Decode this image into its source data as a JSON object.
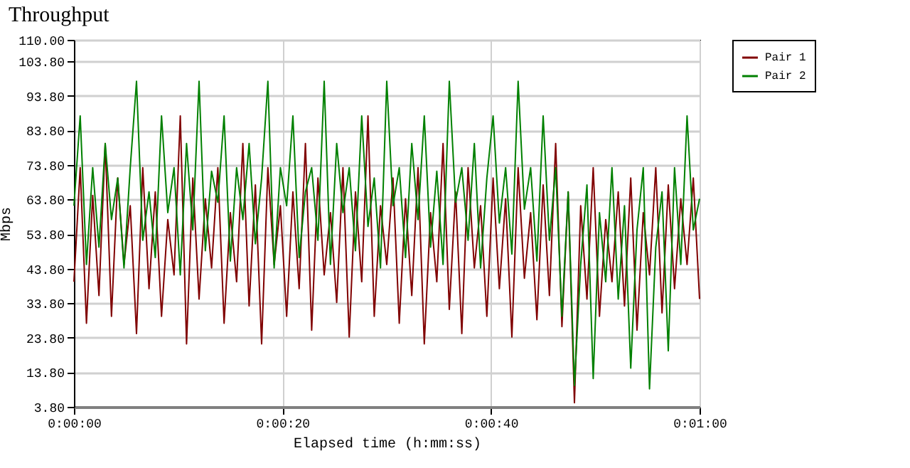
{
  "chart_data": {
    "type": "line",
    "title": "Throughput",
    "xlabel": "Elapsed time (h:mm:ss)",
    "ylabel": "Mbps",
    "x": [
      0,
      0.6,
      1.2,
      1.8,
      2.4,
      3,
      3.6,
      4.2,
      4.8,
      5.4,
      6,
      6.6,
      7.2,
      7.8,
      8.4,
      9,
      9.6,
      10.2,
      10.8,
      11.4,
      12,
      12.6,
      13.2,
      13.8,
      14.4,
      15,
      15.6,
      16.2,
      16.8,
      17.4,
      18,
      18.6,
      19.2,
      19.8,
      20.4,
      21,
      21.6,
      22.2,
      22.8,
      23.4,
      24,
      24.6,
      25.2,
      25.8,
      26.4,
      27,
      27.6,
      28.2,
      28.8,
      29.4,
      30,
      30.6,
      31.2,
      31.8,
      32.4,
      33,
      33.6,
      34.2,
      34.8,
      35.4,
      36,
      36.6,
      37.2,
      37.8,
      38.4,
      39,
      39.6,
      40.2,
      40.8,
      41.4,
      42,
      42.6,
      43.2,
      43.8,
      44.4,
      45,
      45.6,
      46.2,
      46.8,
      47.4,
      48,
      48.6,
      49.2,
      49.8,
      50.4,
      51,
      51.6,
      52.2,
      52.8,
      53.4,
      54,
      54.6,
      55.2,
      55.8,
      56.4,
      57,
      57.6,
      58.2,
      58.8,
      59.4,
      60
    ],
    "series": [
      {
        "name": "Pair 1",
        "color": "#800000",
        "values": [
          40,
          73,
          28,
          65,
          36,
          80,
          30,
          70,
          45,
          62,
          25,
          73,
          38,
          66,
          30,
          58,
          42,
          88,
          22,
          70,
          35,
          64,
          44,
          73,
          28,
          60,
          40,
          80,
          33,
          68,
          22,
          73,
          45,
          62,
          30,
          66,
          38,
          80,
          26,
          70,
          42,
          60,
          34,
          73,
          24,
          66,
          40,
          88,
          30,
          62,
          45,
          70,
          28,
          64,
          36,
          73,
          22,
          60,
          40,
          80,
          32,
          66,
          25,
          73,
          44,
          62,
          30,
          70,
          38,
          64,
          24,
          73,
          41,
          60,
          29,
          68,
          36,
          80,
          27,
          66,
          5,
          62,
          35,
          73,
          30,
          58,
          40,
          66,
          33,
          70,
          26,
          60,
          42,
          73,
          31,
          68,
          38,
          64,
          45,
          70,
          35
        ]
      },
      {
        "name": "Pair 2",
        "color": "#008000",
        "values": [
          62,
          88,
          45,
          73,
          50,
          80,
          58,
          70,
          44,
          73,
          98,
          52,
          66,
          47,
          88,
          60,
          73,
          42,
          80,
          55,
          98,
          49,
          72,
          63,
          88,
          46,
          73,
          58,
          80,
          51,
          70,
          98,
          44,
          73,
          62,
          88,
          47,
          66,
          73,
          52,
          98,
          45,
          80,
          60,
          73,
          49,
          88,
          56,
          70,
          44,
          98,
          62,
          73,
          47,
          80,
          58,
          88,
          50,
          72,
          45,
          98,
          63,
          73,
          52,
          80,
          44,
          70,
          88,
          57,
          73,
          48,
          98,
          61,
          73,
          46,
          88,
          52,
          73,
          30,
          66,
          10,
          45,
          68,
          12,
          60,
          40,
          73,
          35,
          62,
          15,
          55,
          73,
          9,
          50,
          66,
          20,
          73,
          45,
          88,
          55,
          64
        ]
      }
    ],
    "xlim": [
      0,
      60
    ],
    "xticks": [
      {
        "value": 0,
        "label": "0:00:00"
      },
      {
        "value": 20,
        "label": "0:00:20"
      },
      {
        "value": 40,
        "label": "0:00:40"
      },
      {
        "value": 60,
        "label": "0:01:00"
      }
    ],
    "ylim": [
      3.8,
      110
    ],
    "yticks": [
      {
        "value": 3.8,
        "label": "3.80"
      },
      {
        "value": 13.8,
        "label": "13.80"
      },
      {
        "value": 23.8,
        "label": "23.80"
      },
      {
        "value": 33.8,
        "label": "33.80"
      },
      {
        "value": 43.8,
        "label": "43.80"
      },
      {
        "value": 53.8,
        "label": "53.80"
      },
      {
        "value": 63.8,
        "label": "63.80"
      },
      {
        "value": 73.8,
        "label": "73.80"
      },
      {
        "value": 83.8,
        "label": "83.80"
      },
      {
        "value": 93.8,
        "label": "93.80"
      },
      {
        "value": 103.8,
        "label": "103.80"
      },
      {
        "value": 110,
        "label": "110.00"
      }
    ],
    "grid": true,
    "legend": "top right",
    "marker": "none",
    "line_style": "solid"
  }
}
